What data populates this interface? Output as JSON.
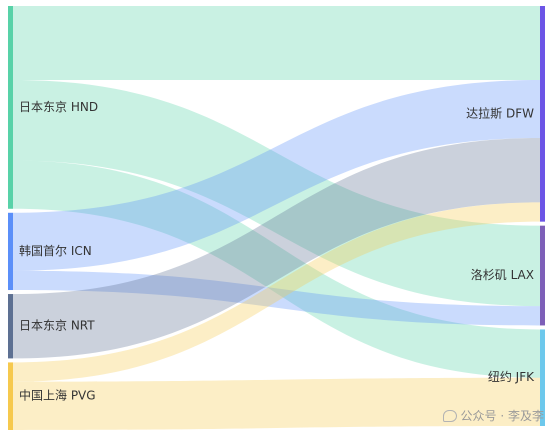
{
  "chart_data": {
    "type": "sankey",
    "nodes": [
      {
        "id": "hnd",
        "label": "日本东京 HND",
        "color": "#58d2a8",
        "side": "left"
      },
      {
        "id": "icn",
        "label": "韩国首尔 ICN",
        "color": "#5b8ff9",
        "side": "left"
      },
      {
        "id": "nrt",
        "label": "日本东京 NRT",
        "color": "#5d7092",
        "side": "left"
      },
      {
        "id": "pvg",
        "label": "中国上海 PVG",
        "color": "#f6c94e",
        "side": "left"
      },
      {
        "id": "dfw",
        "label": "达拉斯 DFW",
        "color": "#6c55e6",
        "side": "right"
      },
      {
        "id": "lax",
        "label": "洛杉矶 LAX",
        "color": "#7d5fb8",
        "side": "right"
      },
      {
        "id": "jfk",
        "label": "纽约 JFK",
        "color": "#6dc8ec",
        "side": "right"
      }
    ],
    "links": [
      {
        "source": "hnd",
        "target": "dfw",
        "value": 23
      },
      {
        "source": "hnd",
        "target": "lax",
        "value": 25
      },
      {
        "source": "hnd",
        "target": "jfk",
        "value": 15
      },
      {
        "source": "icn",
        "target": "dfw",
        "value": 18
      },
      {
        "source": "icn",
        "target": "lax",
        "value": 6
      },
      {
        "source": "nrt",
        "target": "dfw",
        "value": 20
      },
      {
        "source": "pvg",
        "target": "dfw",
        "value": 6
      },
      {
        "source": "pvg",
        "target": "jfk",
        "value": 15
      }
    ]
  },
  "watermark": {
    "text": "公众号 · 李及李",
    "icon": "chat-bubble-icon"
  }
}
